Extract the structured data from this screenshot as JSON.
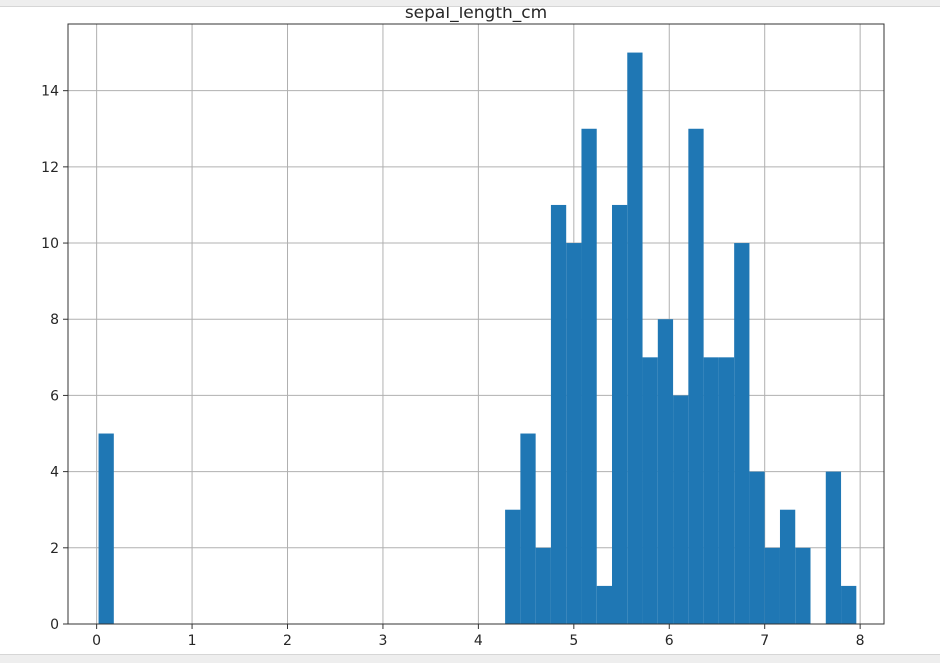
{
  "chart_data": {
    "type": "bar",
    "title": "sepal_length_cm",
    "xlabel": "",
    "ylabel": "",
    "xlim": [
      -0.3,
      8.25
    ],
    "ylim": [
      0,
      15.75
    ],
    "grid": true,
    "bar_color": "#1f77b4",
    "bin_width": 0.16,
    "x_ticks": [
      0,
      1,
      2,
      3,
      4,
      5,
      6,
      7,
      8
    ],
    "y_ticks": [
      0,
      2,
      4,
      6,
      8,
      10,
      12,
      14
    ],
    "x": [
      0.1,
      4.36,
      4.52,
      4.68,
      4.84,
      5.0,
      5.16,
      5.32,
      5.48,
      5.64,
      5.8,
      5.96,
      6.12,
      6.28,
      6.44,
      6.6,
      6.76,
      6.92,
      7.08,
      7.24,
      7.4,
      7.56,
      7.72,
      7.88
    ],
    "values": [
      5,
      3,
      5,
      2,
      11,
      10,
      13,
      1,
      11,
      15,
      7,
      8,
      6,
      13,
      7,
      7,
      10,
      4,
      2,
      3,
      2,
      0,
      4,
      1
    ]
  }
}
